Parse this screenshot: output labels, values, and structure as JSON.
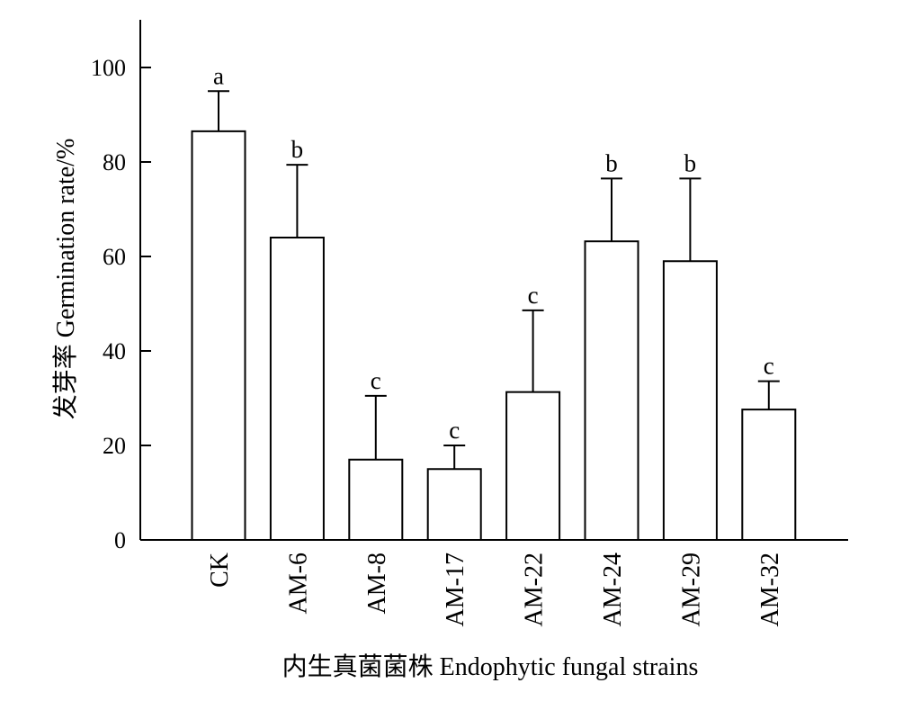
{
  "chart_data": {
    "type": "bar",
    "categories": [
      "CK",
      "AM-6",
      "AM-8",
      "AM-17",
      "AM-22",
      "AM-24",
      "AM-29",
      "AM-32"
    ],
    "values": [
      86.5,
      64,
      17,
      15,
      31.3,
      63.2,
      59,
      27.6
    ],
    "errors": [
      8.5,
      15.4,
      13.5,
      5,
      17.3,
      13.3,
      17.5,
      6
    ],
    "significance": [
      "a",
      "b",
      "c",
      "c",
      "c",
      "b",
      "b",
      "c"
    ],
    "title": "",
    "xlabel": "内生真菌菌株 Endophytic fungal strains",
    "ylabel": "发芽率 Germination rate/%",
    "ylim": [
      0,
      110
    ],
    "yticks": [
      0,
      20,
      40,
      60,
      80,
      100
    ],
    "grid": false,
    "colors": {
      "bar_fill": "#ffffff",
      "stroke": "#000000"
    }
  }
}
